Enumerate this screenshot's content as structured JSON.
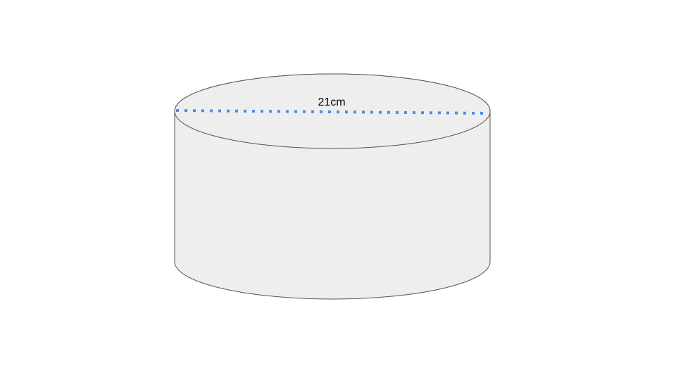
{
  "diagram": {
    "shape": "cylinder",
    "diameter_label": "21cm",
    "colors": {
      "fill": "#eeeeee",
      "stroke": "#555555",
      "diameter_line": "#4a8ee3",
      "label": "#000000",
      "background": "#ffffff"
    }
  }
}
